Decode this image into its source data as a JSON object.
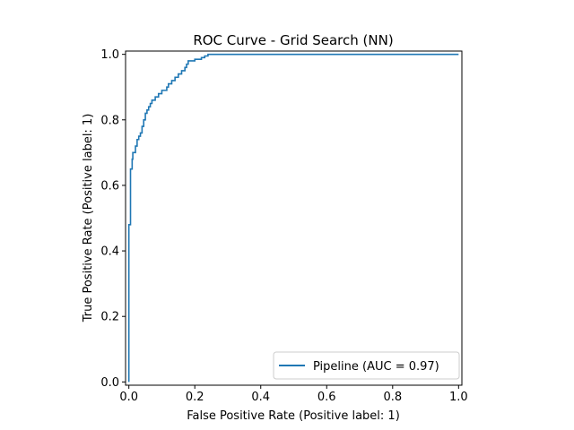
{
  "chart_data": {
    "type": "line",
    "title": "ROC Curve - Grid Search (NN)",
    "xlabel": "False Positive Rate (Positive label: 1)",
    "ylabel": "True Positive Rate (Positive label: 1)",
    "xlim": [
      -0.01,
      1.01
    ],
    "ylim": [
      -0.01,
      1.01
    ],
    "xticks": [
      "0.0",
      "0.2",
      "0.4",
      "0.6",
      "0.8",
      "1.0"
    ],
    "yticks": [
      "0.0",
      "0.2",
      "0.4",
      "0.6",
      "0.8",
      "1.0"
    ],
    "grid": false,
    "legend_position": "lower-right",
    "series": [
      {
        "name": "Pipeline (AUC = 0.97)",
        "color": "#1f77b4",
        "points": [
          [
            0.0,
            0.0
          ],
          [
            0.0,
            0.48
          ],
          [
            0.005,
            0.48
          ],
          [
            0.005,
            0.65
          ],
          [
            0.01,
            0.65
          ],
          [
            0.01,
            0.68
          ],
          [
            0.012,
            0.68
          ],
          [
            0.012,
            0.7
          ],
          [
            0.02,
            0.7
          ],
          [
            0.02,
            0.72
          ],
          [
            0.025,
            0.72
          ],
          [
            0.025,
            0.74
          ],
          [
            0.03,
            0.74
          ],
          [
            0.03,
            0.75
          ],
          [
            0.035,
            0.75
          ],
          [
            0.035,
            0.76
          ],
          [
            0.04,
            0.76
          ],
          [
            0.04,
            0.78
          ],
          [
            0.045,
            0.78
          ],
          [
            0.045,
            0.8
          ],
          [
            0.05,
            0.8
          ],
          [
            0.05,
            0.82
          ],
          [
            0.055,
            0.82
          ],
          [
            0.055,
            0.83
          ],
          [
            0.06,
            0.83
          ],
          [
            0.06,
            0.84
          ],
          [
            0.065,
            0.84
          ],
          [
            0.065,
            0.85
          ],
          [
            0.07,
            0.85
          ],
          [
            0.07,
            0.86
          ],
          [
            0.08,
            0.86
          ],
          [
            0.08,
            0.87
          ],
          [
            0.09,
            0.87
          ],
          [
            0.09,
            0.88
          ],
          [
            0.1,
            0.88
          ],
          [
            0.1,
            0.89
          ],
          [
            0.115,
            0.89
          ],
          [
            0.115,
            0.9
          ],
          [
            0.12,
            0.9
          ],
          [
            0.12,
            0.91
          ],
          [
            0.13,
            0.91
          ],
          [
            0.13,
            0.92
          ],
          [
            0.14,
            0.92
          ],
          [
            0.14,
            0.93
          ],
          [
            0.15,
            0.93
          ],
          [
            0.15,
            0.94
          ],
          [
            0.16,
            0.94
          ],
          [
            0.16,
            0.95
          ],
          [
            0.17,
            0.95
          ],
          [
            0.17,
            0.96
          ],
          [
            0.175,
            0.96
          ],
          [
            0.175,
            0.97
          ],
          [
            0.18,
            0.97
          ],
          [
            0.18,
            0.98
          ],
          [
            0.2,
            0.98
          ],
          [
            0.2,
            0.985
          ],
          [
            0.22,
            0.985
          ],
          [
            0.22,
            0.99
          ],
          [
            0.23,
            0.99
          ],
          [
            0.23,
            0.995
          ],
          [
            0.24,
            0.995
          ],
          [
            0.24,
            1.0
          ],
          [
            1.0,
            1.0
          ]
        ]
      }
    ]
  }
}
